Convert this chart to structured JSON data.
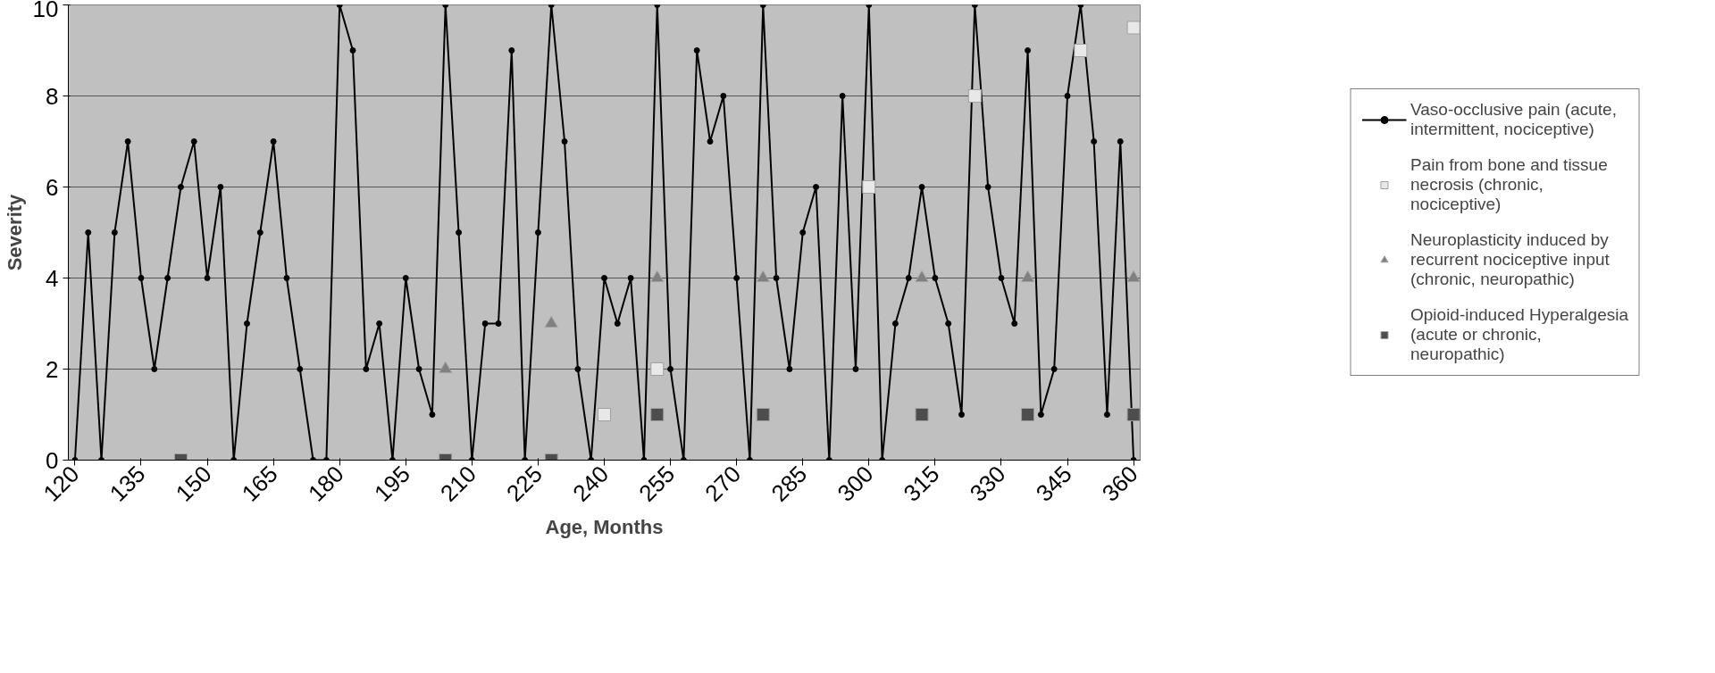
{
  "chart_data": {
    "type": "line",
    "xlabel": "Age, Months",
    "ylabel": "Severity",
    "x": [
      120,
      123,
      126,
      129,
      132,
      135,
      138,
      141,
      144,
      147,
      150,
      153,
      156,
      159,
      162,
      165,
      168,
      171,
      174,
      177,
      180,
      183,
      186,
      189,
      192,
      195,
      198,
      201,
      204,
      207,
      210,
      213,
      216,
      219,
      222,
      225,
      228,
      231,
      234,
      237,
      240,
      243,
      246,
      249,
      252,
      255,
      258,
      261,
      264,
      267,
      270,
      273,
      276,
      279,
      282,
      285,
      288,
      291,
      294,
      297,
      300,
      303,
      306,
      309,
      312,
      315,
      318,
      321,
      324,
      327,
      330,
      333,
      336,
      339,
      342,
      345,
      348,
      351,
      354,
      357,
      360
    ],
    "xlim": [
      118.5,
      361.5
    ],
    "xticks": [
      120,
      135,
      150,
      165,
      180,
      195,
      210,
      225,
      240,
      255,
      270,
      285,
      300,
      315,
      330,
      345,
      360
    ],
    "ylim": [
      0,
      10
    ],
    "yticks": [
      0,
      2,
      4,
      6,
      8,
      10
    ],
    "grid": "y",
    "legend": "right",
    "series": [
      {
        "name": "Vaso-occlusive pain (acute, intermittent, nociceptive)",
        "color": "#000000",
        "marker": "circle",
        "values": [
          0,
          5,
          0,
          5,
          7,
          4,
          2,
          4,
          6,
          7,
          4,
          6,
          0,
          3,
          5,
          7,
          4,
          2,
          0,
          0,
          10,
          9,
          2,
          3,
          0,
          4,
          2,
          1,
          10,
          5,
          0,
          3,
          3,
          9,
          0,
          5,
          10,
          7,
          2,
          0,
          4,
          3,
          4,
          0,
          10,
          2,
          0,
          9,
          7,
          8,
          4,
          0,
          10,
          4,
          2,
          5,
          6,
          0,
          8,
          2,
          10,
          0,
          3,
          4,
          6,
          4,
          3,
          1,
          10,
          6,
          4,
          3,
          9,
          1,
          2,
          8,
          10,
          7,
          1,
          7,
          0
        ]
      },
      {
        "name": "Pain from bone and tissue necrosis (chronic, nociceptive)",
        "type": "scatter",
        "color": "#e8e8e8",
        "marker": "square",
        "values": [
          null,
          null,
          null,
          null,
          null,
          null,
          null,
          null,
          null,
          null,
          null,
          null,
          null,
          null,
          null,
          null,
          null,
          null,
          null,
          null,
          null,
          null,
          null,
          null,
          null,
          null,
          null,
          null,
          null,
          null,
          null,
          null,
          null,
          null,
          null,
          null,
          null,
          null,
          null,
          null,
          1,
          null,
          null,
          null,
          2,
          null,
          null,
          null,
          null,
          null,
          null,
          null,
          null,
          null,
          null,
          null,
          null,
          null,
          null,
          null,
          6,
          null,
          null,
          null,
          null,
          null,
          null,
          null,
          8,
          null,
          null,
          null,
          null,
          null,
          null,
          null,
          9,
          null,
          null,
          null,
          9.5
        ]
      },
      {
        "name": "Neuroplasticity induced by recurrent nociceptive input (chronic, neuropathic)",
        "type": "scatter",
        "color": "#808080",
        "marker": "triangle",
        "values": [
          null,
          null,
          null,
          null,
          null,
          null,
          null,
          null,
          null,
          null,
          null,
          null,
          null,
          null,
          null,
          null,
          null,
          null,
          null,
          null,
          null,
          null,
          null,
          null,
          null,
          null,
          null,
          null,
          2,
          null,
          null,
          null,
          null,
          null,
          null,
          null,
          3,
          null,
          null,
          null,
          null,
          null,
          null,
          null,
          4,
          null,
          null,
          null,
          null,
          null,
          null,
          null,
          4,
          null,
          null,
          null,
          null,
          null,
          null,
          null,
          null,
          null,
          null,
          null,
          4,
          null,
          null,
          null,
          null,
          null,
          null,
          null,
          4,
          null,
          null,
          null,
          null,
          null,
          null,
          null,
          4
        ]
      },
      {
        "name": "Opioid-induced Hyperalgesia (acute or chronic, neuropathic)",
        "type": "scatter",
        "color": "#4d4d4d",
        "marker": "square",
        "values": [
          null,
          null,
          null,
          null,
          null,
          null,
          null,
          null,
          0,
          null,
          null,
          null,
          null,
          null,
          null,
          null,
          null,
          null,
          null,
          null,
          null,
          null,
          null,
          null,
          null,
          null,
          null,
          null,
          0,
          null,
          null,
          null,
          null,
          null,
          null,
          null,
          0,
          null,
          null,
          null,
          null,
          null,
          null,
          null,
          1,
          null,
          null,
          null,
          null,
          null,
          null,
          null,
          1,
          null,
          null,
          null,
          null,
          null,
          null,
          null,
          null,
          null,
          null,
          null,
          1,
          null,
          null,
          null,
          null,
          null,
          null,
          null,
          1,
          null,
          null,
          null,
          null,
          null,
          null,
          null,
          1
        ]
      }
    ]
  }
}
